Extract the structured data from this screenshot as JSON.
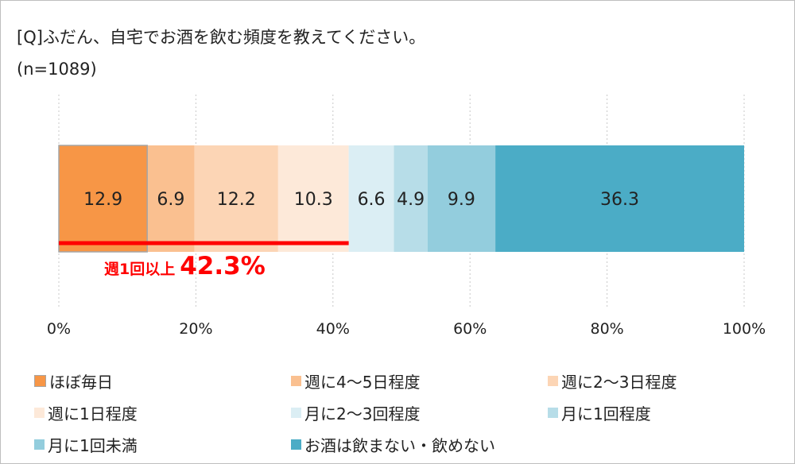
{
  "title": "[Q]ふだん、自宅でお酒を飲む頻度を教えてください。",
  "subtitle": "(n=1089)",
  "chart_data": {
    "type": "bar",
    "orientation": "horizontal-stacked-100",
    "categories": [
      "ほぼ毎日",
      "週に4～5日程度",
      "週に2～3日程度",
      "週に1日程度",
      "月に2～3回程度",
      "月に1回程度",
      "月に1回未満",
      "お酒は飲まない・飲めない"
    ],
    "values": [
      12.9,
      6.9,
      12.2,
      10.3,
      6.6,
      4.9,
      9.9,
      36.3
    ],
    "value_labels": [
      "12.9",
      "6.9",
      "12.2",
      "10.3",
      "6.6",
      "4.9",
      "9.9",
      "36.3"
    ],
    "colors": [
      "#f79646",
      "#fac090",
      "#fcd5b5",
      "#fde9d9",
      "#dbeef4",
      "#b7dde8",
      "#93cddd",
      "#4bacc6"
    ],
    "xlim": [
      0,
      100
    ],
    "xticks": [
      "0%",
      "20%",
      "40%",
      "60%",
      "80%",
      "100%"
    ],
    "grid": true,
    "legend_position": "bottom",
    "annotation": {
      "label": "週1回以上",
      "value": "42.3%",
      "value_num": 42.3,
      "color": "#ff0000"
    }
  }
}
